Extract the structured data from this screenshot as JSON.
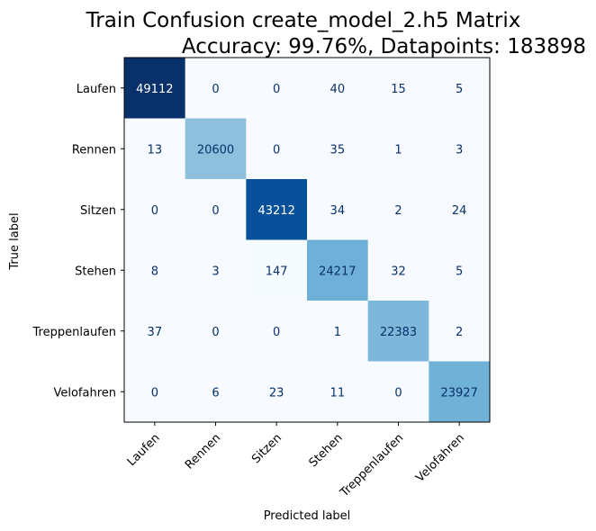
{
  "chart_data": {
    "type": "heatmap",
    "title_line1": "Train Confusion create_model_2.h5 Matrix",
    "title_line2": "Accuracy: 99.76%, Datapoints: 183898",
    "xlabel": "Predicted label",
    "ylabel": "True label",
    "x_categories": [
      "Laufen",
      "Rennen",
      "Sitzen",
      "Stehen",
      "Treppenlaufen",
      "Velofahren"
    ],
    "y_categories": [
      "Laufen",
      "Rennen",
      "Sitzen",
      "Stehen",
      "Treppenlaufen",
      "Velofahren"
    ],
    "values": [
      [
        49112,
        0,
        0,
        40,
        15,
        5
      ],
      [
        13,
        20600,
        0,
        35,
        1,
        3
      ],
      [
        0,
        0,
        43212,
        34,
        2,
        24
      ],
      [
        8,
        3,
        147,
        24217,
        32,
        5
      ],
      [
        37,
        0,
        0,
        1,
        22383,
        2
      ],
      [
        0,
        6,
        23,
        11,
        0,
        23927
      ]
    ],
    "colormap": "Blues",
    "text_color_dark": "#08306b",
    "text_color_light": "#ffffff"
  }
}
